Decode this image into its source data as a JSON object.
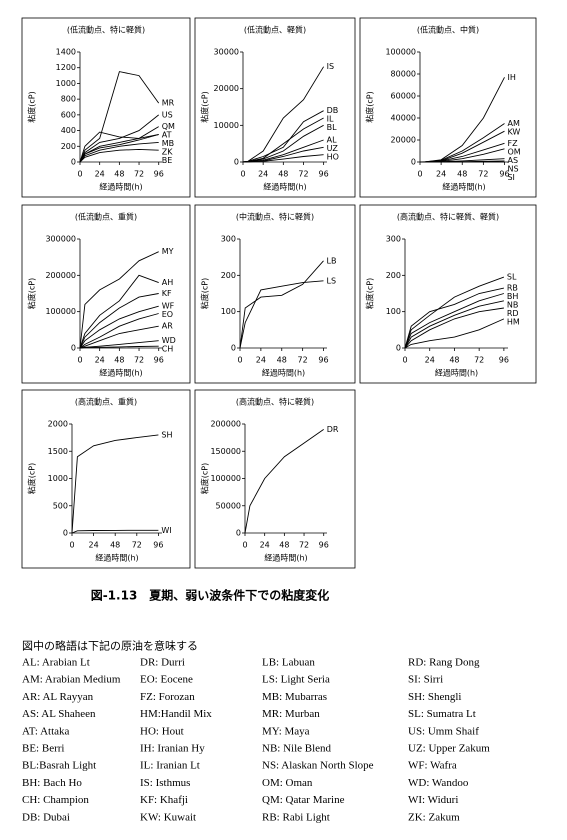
{
  "chart_data": [
    {
      "type": "line",
      "title": "(低流動点、特に軽質)",
      "xlabel": "経過時間(h)",
      "ylabel": "粘度(cP)",
      "color": "#000000",
      "x": [
        0,
        6,
        24,
        48,
        72,
        96
      ],
      "xlim": [
        0,
        100
      ],
      "xticks": [
        0,
        24,
        48,
        72,
        96
      ],
      "ylim": [
        0,
        1400
      ],
      "yticks": [
        0,
        200,
        400,
        600,
        800,
        1000,
        1200,
        1400
      ],
      "series": [
        {
          "name": "MR",
          "values": [
            0,
            150,
            300,
            1150,
            1100,
            750
          ]
        },
        {
          "name": "US",
          "values": [
            0,
            120,
            250,
            300,
            400,
            600
          ]
        },
        {
          "name": "AT",
          "values": [
            0,
            200,
            380,
            320,
            300,
            350
          ]
        },
        {
          "name": "QM",
          "values": [
            0,
            100,
            200,
            250,
            300,
            450
          ]
        },
        {
          "name": "MB",
          "values": [
            0,
            100,
            180,
            220,
            280,
            350
          ]
        },
        {
          "name": "ZK",
          "values": [
            0,
            80,
            150,
            200,
            230,
            250
          ]
        },
        {
          "name": "BE",
          "values": [
            0,
            60,
            120,
            150,
            160,
            150
          ]
        }
      ]
    },
    {
      "type": "line",
      "title": "(低流動点、軽質)",
      "xlabel": "経過時間(h)",
      "ylabel": "粘度(cP)",
      "color": "#000000",
      "x": [
        0,
        6,
        24,
        48,
        72,
        96
      ],
      "xlim": [
        0,
        100
      ],
      "xticks": [
        0,
        24,
        48,
        72,
        96
      ],
      "ylim": [
        0,
        30000
      ],
      "yticks": [
        0,
        10000,
        20000,
        30000
      ],
      "series": [
        {
          "name": "IS",
          "values": [
            0,
            200,
            3000,
            12000,
            17000,
            26000
          ]
        },
        {
          "name": "DB",
          "values": [
            0,
            200,
            1500,
            4000,
            11000,
            14000
          ]
        },
        {
          "name": "IL",
          "values": [
            0,
            100,
            1000,
            5000,
            9000,
            12000
          ]
        },
        {
          "name": "BL",
          "values": [
            0,
            100,
            800,
            3000,
            7000,
            10000
          ]
        },
        {
          "name": "AL",
          "values": [
            0,
            100,
            500,
            2000,
            4000,
            6000
          ]
        },
        {
          "name": "UZ",
          "values": [
            0,
            50,
            300,
            1500,
            3000,
            4000
          ]
        },
        {
          "name": "HO",
          "values": [
            0,
            50,
            200,
            800,
            1500,
            2000
          ]
        }
      ]
    },
    {
      "type": "line",
      "title": "(低流動点、中質)",
      "xlabel": "経過時間(h)",
      "ylabel": "粘度(cP)",
      "color": "#000000",
      "x": [
        0,
        6,
        24,
        48,
        72,
        96
      ],
      "xlim": [
        0,
        100
      ],
      "xticks": [
        0,
        24,
        48,
        72,
        96
      ],
      "ylim": [
        0,
        100000
      ],
      "yticks": [
        0,
        20000,
        40000,
        60000,
        80000,
        100000
      ],
      "series": [
        {
          "name": "IH",
          "values": [
            0,
            200,
            2000,
            15000,
            40000,
            77000
          ]
        },
        {
          "name": "AM",
          "values": [
            0,
            200,
            1500,
            10000,
            22000,
            35000
          ]
        },
        {
          "name": "KW",
          "values": [
            0,
            150,
            1000,
            8000,
            18000,
            28000
          ]
        },
        {
          "name": "FZ",
          "values": [
            0,
            100,
            800,
            5000,
            11000,
            17000
          ]
        },
        {
          "name": "OM",
          "values": [
            0,
            100,
            500,
            3000,
            7000,
            12000
          ]
        },
        {
          "name": "AS",
          "values": [
            0,
            50,
            300,
            1000,
            2000,
            3000
          ]
        },
        {
          "name": "NS",
          "values": [
            0,
            20,
            100,
            300,
            600,
            1000
          ]
        },
        {
          "name": "SI",
          "values": [
            0,
            10,
            30,
            60,
            80,
            100
          ]
        }
      ]
    },
    {
      "type": "line",
      "title": "(低流動点、重質)",
      "xlabel": "経過時間(h)",
      "ylabel": "粘度(cP)",
      "color": "#000000",
      "x": [
        0,
        6,
        24,
        48,
        72,
        96
      ],
      "xlim": [
        0,
        100
      ],
      "xticks": [
        0,
        24,
        48,
        72,
        96
      ],
      "ylim": [
        0,
        300000
      ],
      "yticks": [
        0,
        100000,
        200000,
        300000
      ],
      "series": [
        {
          "name": "MY",
          "values": [
            0,
            120000,
            160000,
            190000,
            240000,
            265000
          ]
        },
        {
          "name": "AH",
          "values": [
            0,
            40000,
            90000,
            130000,
            200000,
            180000
          ]
        },
        {
          "name": "KF",
          "values": [
            0,
            30000,
            70000,
            110000,
            140000,
            150000
          ]
        },
        {
          "name": "WF",
          "values": [
            0,
            20000,
            50000,
            80000,
            100000,
            115000
          ]
        },
        {
          "name": "EO",
          "values": [
            0,
            10000,
            30000,
            60000,
            80000,
            95000
          ]
        },
        {
          "name": "AR",
          "values": [
            0,
            5000,
            20000,
            40000,
            50000,
            60000
          ]
        },
        {
          "name": "WD",
          "values": [
            0,
            2000,
            5000,
            10000,
            15000,
            20000
          ]
        },
        {
          "name": "CH",
          "values": [
            0,
            1000,
            2000,
            3000,
            4000,
            5000
          ]
        }
      ]
    },
    {
      "type": "line",
      "title": "(中流動点、特に軽質)",
      "xlabel": "経過時間(h)",
      "ylabel": "粘度(cP)",
      "color": "#000000",
      "x": [
        0,
        6,
        24,
        48,
        72,
        96
      ],
      "xlim": [
        0,
        100
      ],
      "xticks": [
        0,
        24,
        48,
        72,
        96
      ],
      "ylim": [
        0,
        300
      ],
      "yticks": [
        0,
        100,
        200,
        300
      ],
      "series": [
        {
          "name": "LB",
          "values": [
            0,
            110,
            140,
            145,
            175,
            240
          ]
        },
        {
          "name": "LS",
          "values": [
            0,
            70,
            160,
            170,
            180,
            185
          ]
        }
      ]
    },
    {
      "type": "line",
      "title": "(高流動点、特に軽質、軽質)",
      "xlabel": "経過時間(h)",
      "ylabel": "粘度(cP)",
      "color": "#000000",
      "x": [
        0,
        6,
        24,
        48,
        72,
        96
      ],
      "xlim": [
        0,
        100
      ],
      "xticks": [
        0,
        24,
        48,
        72,
        96
      ],
      "ylim": [
        0,
        300
      ],
      "yticks": [
        0,
        100,
        200,
        300
      ],
      "series": [
        {
          "name": "SL",
          "values": [
            0,
            50,
            90,
            140,
            170,
            195
          ]
        },
        {
          "name": "RB",
          "values": [
            0,
            60,
            100,
            120,
            150,
            165
          ]
        },
        {
          "name": "BH",
          "values": [
            0,
            40,
            70,
            100,
            130,
            150
          ]
        },
        {
          "name": "NB",
          "values": [
            0,
            30,
            60,
            90,
            115,
            130
          ]
        },
        {
          "name": "RD",
          "values": [
            0,
            20,
            50,
            80,
            100,
            110
          ]
        },
        {
          "name": "HM",
          "values": [
            0,
            10,
            20,
            30,
            50,
            80
          ]
        }
      ]
    },
    {
      "type": "line",
      "title": "(高流動点、重質)",
      "xlabel": "経過時間(h)",
      "ylabel": "粘度(cP)",
      "color": "#000000",
      "x": [
        0,
        6,
        24,
        48,
        72,
        96
      ],
      "xlim": [
        0,
        100
      ],
      "xticks": [
        0,
        24,
        48,
        72,
        96
      ],
      "ylim": [
        0,
        2000
      ],
      "yticks": [
        0,
        500,
        1000,
        1500,
        2000
      ],
      "series": [
        {
          "name": "SH",
          "values": [
            0,
            1400,
            1600,
            1700,
            1750,
            1800
          ]
        },
        {
          "name": "WI",
          "values": [
            0,
            40,
            45,
            48,
            50,
            50
          ]
        }
      ]
    },
    {
      "type": "line",
      "title": "(高流動点、特に軽質)",
      "xlabel": "経過時間(h)",
      "ylabel": "粘度(cP)",
      "color": "#000000",
      "x": [
        0,
        6,
        24,
        48,
        72,
        96
      ],
      "xlim": [
        0,
        100
      ],
      "xticks": [
        0,
        24,
        48,
        72,
        96
      ],
      "ylim": [
        0,
        200000
      ],
      "yticks": [
        0,
        50000,
        100000,
        150000,
        200000
      ],
      "series": [
        {
          "name": "DR",
          "values": [
            0,
            50000,
            100000,
            140000,
            165000,
            190000
          ]
        }
      ]
    }
  ],
  "caption": "図-1.13　夏期、弱い波条件下での粘度変化",
  "legend_intro": "図中の略語は下記の原油を意味する",
  "abbreviations": [
    [
      "AL: Arabian Lt",
      "AM: Arabian Medium",
      "AR: AL Rayyan",
      "AS: AL Shaheen",
      "AT: Attaka",
      "BE: Berri",
      "BL:Basrah Light",
      "BH: Bach Ho",
      "CH: Champion",
      "DB: Dubai"
    ],
    [
      "DR: Durri",
      "EO: Eocene",
      "FZ: Forozan",
      "HM:Handil Mix",
      "HO: Hout",
      "IH: Iranian Hy",
      "IL: Iranian Lt",
      "IS: Isthmus",
      "KF: Khafji",
      "KW: Kuwait"
    ],
    [
      "LB: Labuan",
      "LS: Light Seria",
      "MB: Mubarras",
      "MR: Murban",
      "MY: Maya",
      "NB: Nile Blend",
      "NS: Alaskan North Slope",
      "OM: Oman",
      "QM: Qatar Marine",
      "RB: Rabi Light"
    ],
    [
      "RD: Rang Dong",
      "SI: Sirri",
      "SH: Shengli",
      "SL: Sumatra Lt",
      "US: Umm Shaif",
      "UZ: Upper Zakum",
      "WF: Wafra",
      "WD: Wandoo",
      "WI: Widuri",
      "ZK: Zakum"
    ]
  ]
}
